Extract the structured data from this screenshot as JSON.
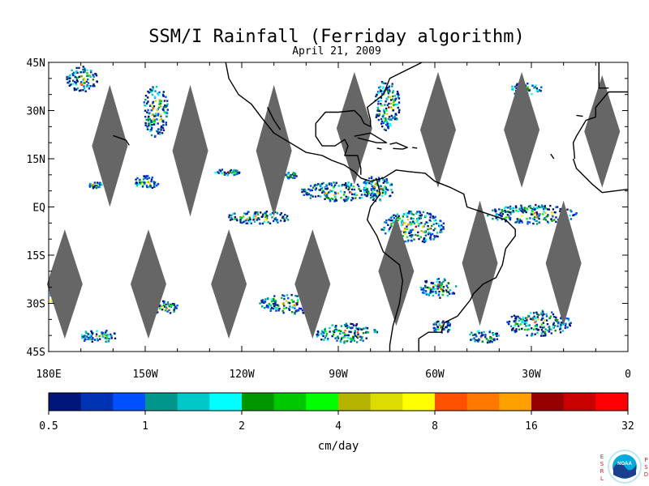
{
  "title": "SSM/I Rainfall (Ferriday algorithm)",
  "subtitle": "April 21, 2009",
  "map": {
    "lon_range": [
      -180,
      0
    ],
    "lat_range": [
      -45,
      45
    ],
    "y_ticks": [
      {
        "lat": 45,
        "label": "45N"
      },
      {
        "lat": 30,
        "label": "30N"
      },
      {
        "lat": 15,
        "label": "15N"
      },
      {
        "lat": 0,
        "label": "EQ"
      },
      {
        "lat": -15,
        "label": "15S"
      },
      {
        "lat": -30,
        "label": "30S"
      },
      {
        "lat": -45,
        "label": "45S"
      }
    ],
    "x_ticks": [
      {
        "lon": -180,
        "label": "180E"
      },
      {
        "lon": -150,
        "label": "150W"
      },
      {
        "lon": -120,
        "label": "120W"
      },
      {
        "lon": -90,
        "label": "90W"
      },
      {
        "lon": -60,
        "label": "60W"
      },
      {
        "lon": -30,
        "label": "30W"
      },
      {
        "lon": 0,
        "label": "0"
      }
    ],
    "swath_gaps": {
      "color": "#666666",
      "north": [
        {
          "lon": -161,
          "lat_top": 38,
          "lat_bot": 0
        },
        {
          "lon": -136,
          "lat_top": 38,
          "lat_bot": -3
        },
        {
          "lon": -110,
          "lat_top": 38,
          "lat_bot": -3
        },
        {
          "lon": -85,
          "lat_top": 42,
          "lat_bot": 7
        },
        {
          "lon": -59,
          "lat_top": 42,
          "lat_bot": 6
        },
        {
          "lon": -33,
          "lat_top": 42,
          "lat_bot": 6
        },
        {
          "lon": -8,
          "lat_top": 41,
          "lat_bot": 6
        }
      ],
      "south": [
        {
          "lon": -175,
          "lat_top": -7,
          "lat_bot": -41
        },
        {
          "lon": -149,
          "lat_top": -7,
          "lat_bot": -41
        },
        {
          "lon": -124,
          "lat_top": -7,
          "lat_bot": -41
        },
        {
          "lon": -98,
          "lat_top": -7,
          "lat_bot": -41
        },
        {
          "lon": -72,
          "lat_top": -3,
          "lat_bot": -37
        },
        {
          "lon": -46,
          "lat_top": 2,
          "lat_bot": -37
        },
        {
          "lon": -20,
          "lat_top": 2,
          "lat_bot": -37
        }
      ]
    },
    "rain_regions": [
      {
        "lon": -170,
        "lat": 40,
        "rx": 5,
        "ry": 4
      },
      {
        "lon": -147,
        "lat": 30,
        "rx": 4,
        "ry": 8
      },
      {
        "lon": -165,
        "lat": 7,
        "rx": 3,
        "ry": 1
      },
      {
        "lon": -150,
        "lat": 8,
        "rx": 4,
        "ry": 2
      },
      {
        "lon": -125,
        "lat": 11,
        "rx": 4,
        "ry": 1
      },
      {
        "lon": -105,
        "lat": 10,
        "rx": 2,
        "ry": 1
      },
      {
        "lon": -115,
        "lat": -3,
        "rx": 10,
        "ry": 2
      },
      {
        "lon": -90,
        "lat": 5,
        "rx": 12,
        "ry": 3
      },
      {
        "lon": -78,
        "lat": 6,
        "rx": 5,
        "ry": 4
      },
      {
        "lon": -75,
        "lat": 32,
        "rx": 4,
        "ry": 8
      },
      {
        "lon": -67,
        "lat": -6,
        "rx": 10,
        "ry": 5
      },
      {
        "lon": -30,
        "lat": -2,
        "rx": 14,
        "ry": 3
      },
      {
        "lon": -59,
        "lat": -25,
        "rx": 6,
        "ry": 3
      },
      {
        "lon": -58,
        "lat": -37,
        "rx": 3,
        "ry": 2
      },
      {
        "lon": -145,
        "lat": -31,
        "rx": 5,
        "ry": 2
      },
      {
        "lon": -180,
        "lat": -28,
        "rx": 4,
        "ry": 2
      },
      {
        "lon": -165,
        "lat": -40,
        "rx": 6,
        "ry": 2
      },
      {
        "lon": -105,
        "lat": -30,
        "rx": 10,
        "ry": 3
      },
      {
        "lon": -88,
        "lat": -39,
        "rx": 10,
        "ry": 3
      },
      {
        "lon": -28,
        "lat": -36,
        "rx": 10,
        "ry": 4
      },
      {
        "lon": -45,
        "lat": -40,
        "rx": 5,
        "ry": 2
      },
      {
        "lon": -32,
        "lat": 37,
        "rx": 5,
        "ry": 2
      }
    ]
  },
  "colorbar": {
    "colors": [
      "#00167a",
      "#0032b4",
      "#0050ff",
      "#00968c",
      "#00c8c8",
      "#00ffff",
      "#009600",
      "#00c800",
      "#00ff00",
      "#b4b400",
      "#dcdc00",
      "#ffff00",
      "#ff5000",
      "#ff7800",
      "#ffa000",
      "#960000",
      "#c80000",
      "#ff0000"
    ],
    "labels": [
      "0.5",
      "1",
      "2",
      "4",
      "8",
      "16",
      "32"
    ],
    "unit": "cm/day"
  },
  "logo": {
    "left_letters": [
      "E",
      "S",
      "R",
      "L"
    ],
    "right_letters": [
      "P",
      "S",
      "D"
    ],
    "badge_text": "NOAA",
    "ring_color": "#00aadd"
  }
}
